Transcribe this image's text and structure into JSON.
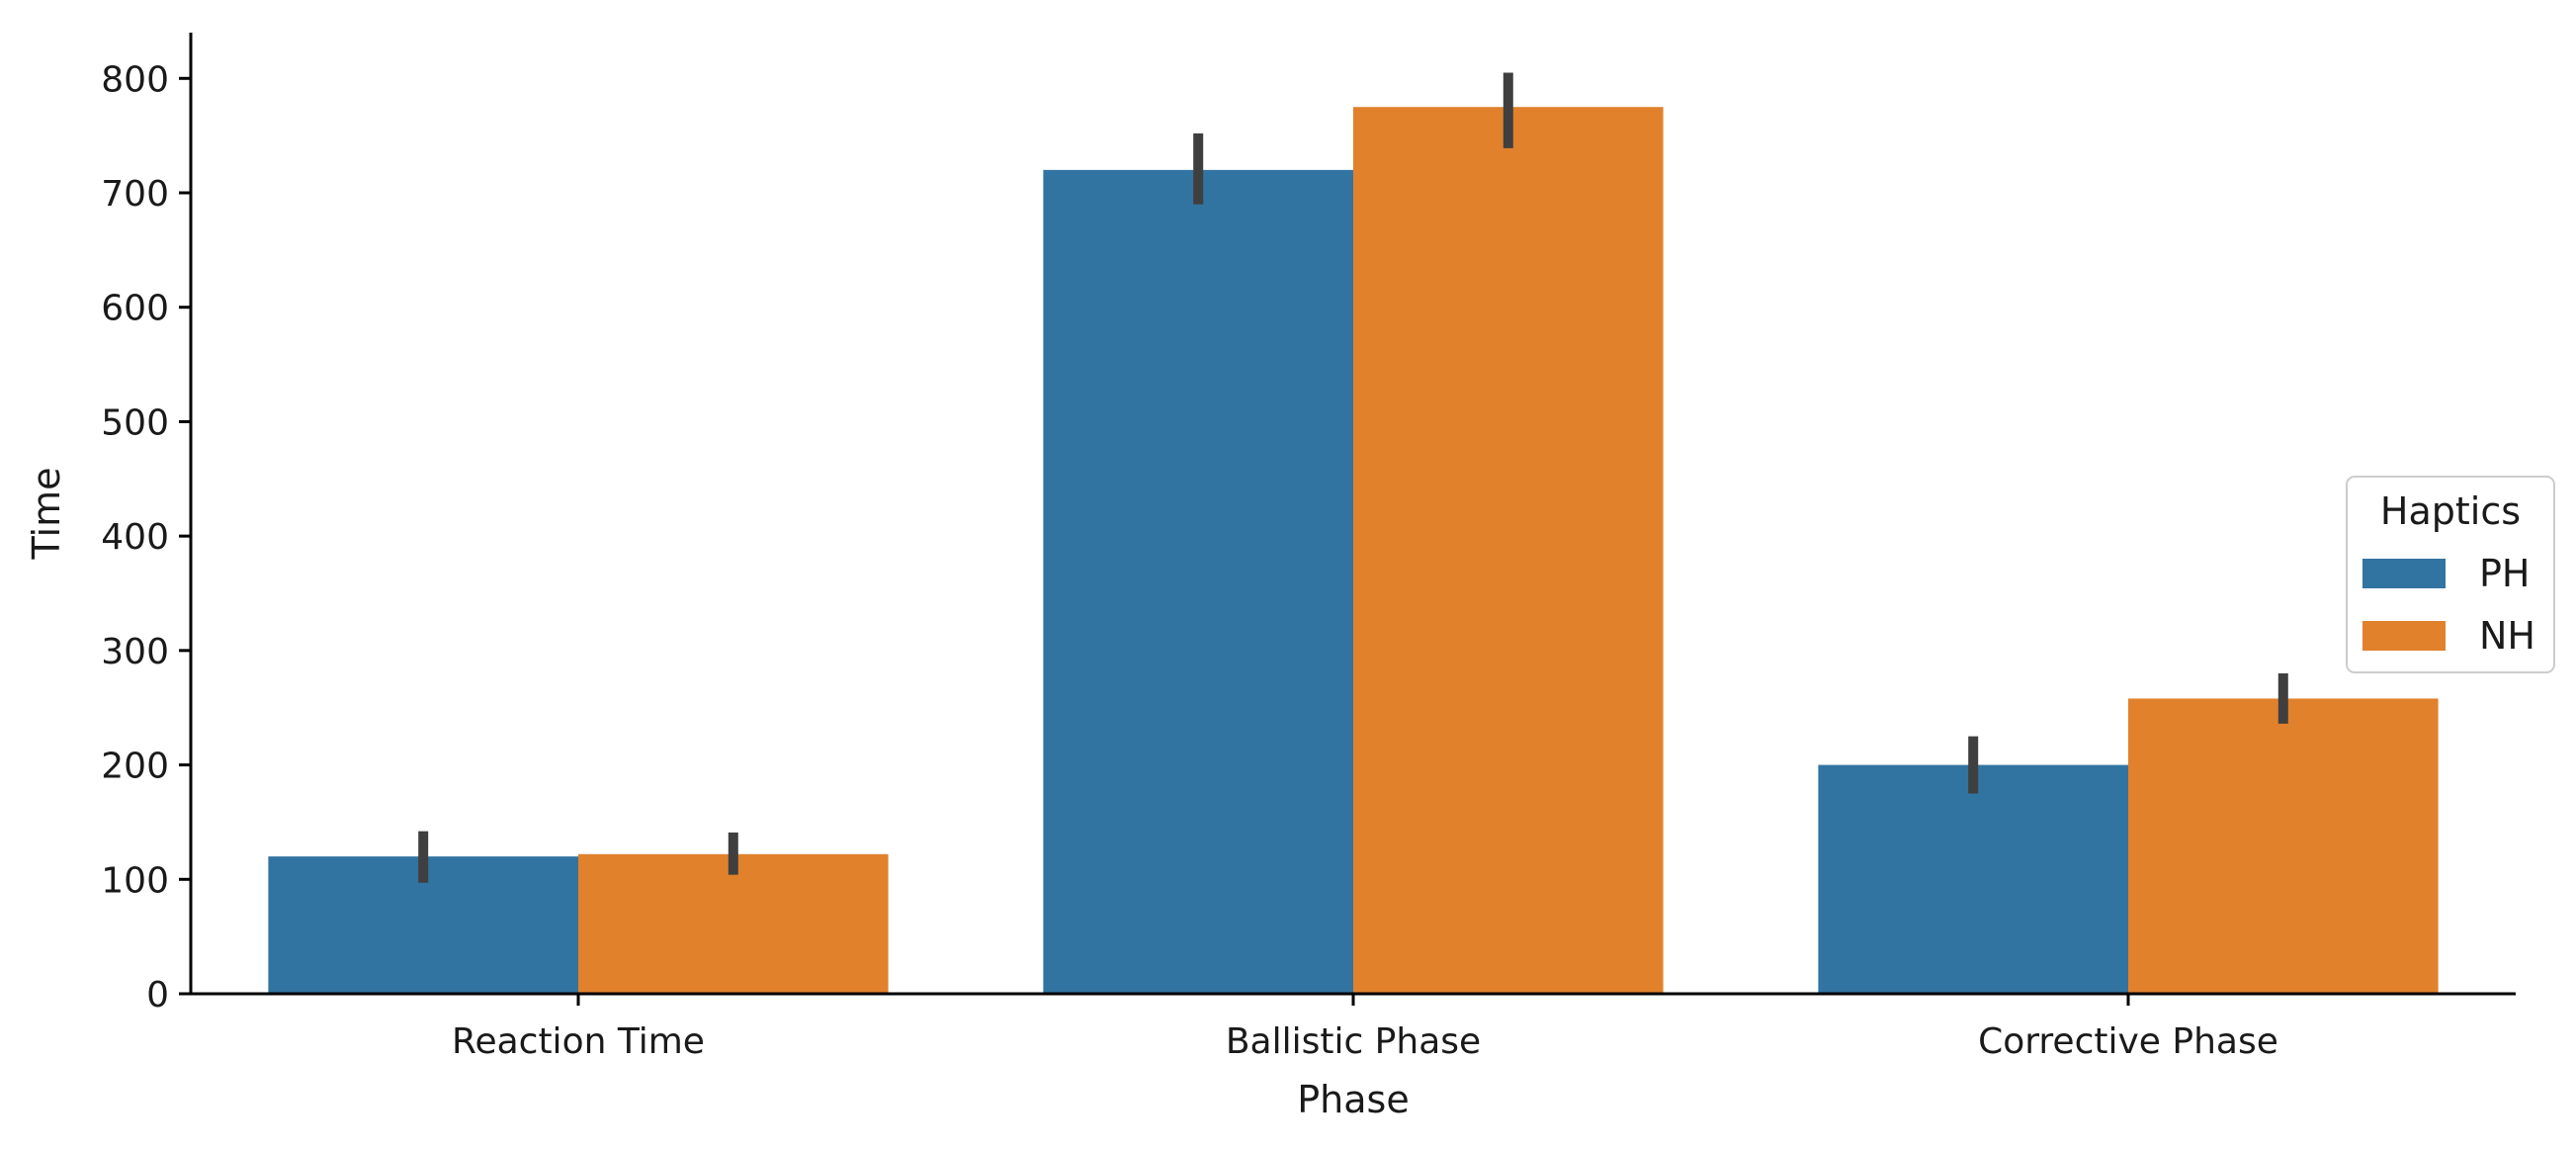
{
  "chart_data": {
    "type": "bar",
    "categories": [
      "Reaction Time",
      "Ballistic Phase",
      "Corrective Phase"
    ],
    "series": [
      {
        "name": "PH",
        "color": "#3274a1",
        "values": [
          120,
          720,
          200
        ],
        "error_low": [
          97,
          690,
          175
        ],
        "error_high": [
          142,
          752,
          225
        ]
      },
      {
        "name": "NH",
        "color": "#e1812c",
        "values": [
          122,
          775,
          258
        ],
        "error_low": [
          104,
          739,
          236
        ],
        "error_high": [
          141,
          805,
          280
        ]
      }
    ],
    "xlabel": "Phase",
    "ylabel": "Time",
    "ylim": [
      0,
      840
    ],
    "yticks": [
      0,
      100,
      200,
      300,
      400,
      500,
      600,
      700,
      800
    ],
    "legend": {
      "title": "Haptics",
      "placement": "center-right"
    },
    "grid": false,
    "error_bar_color": "#3f3f3f"
  }
}
